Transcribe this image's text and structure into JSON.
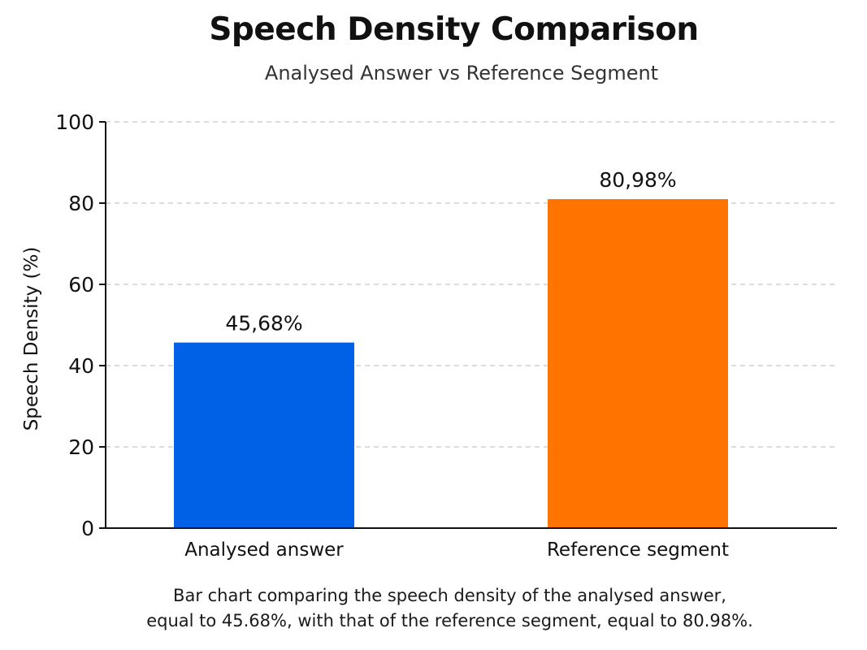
{
  "chart_data": {
    "type": "bar",
    "title": "Speech Density Comparison",
    "subtitle": "Analysed Answer vs Reference Segment",
    "ylabel": "Speech Density (%)",
    "xlabel": "",
    "categories": [
      "Analysed answer",
      "Reference segment"
    ],
    "values": [
      45.68,
      80.98
    ],
    "value_labels": [
      "45,68%",
      "80,98%"
    ],
    "colors": [
      "#0060e6",
      "#ff7300"
    ],
    "ylim": [
      0,
      100
    ],
    "yticks": [
      0,
      20,
      40,
      60,
      80,
      100
    ],
    "ytick_labels": [
      "0",
      "20",
      "40",
      "60",
      "80",
      "100"
    ],
    "grid": true,
    "legend": "none"
  },
  "caption": {
    "line1": "Bar chart comparing the speech density of the analysed answer,",
    "line2": "equal to 45.68%, with that of the reference segment, equal to 80.98%."
  }
}
